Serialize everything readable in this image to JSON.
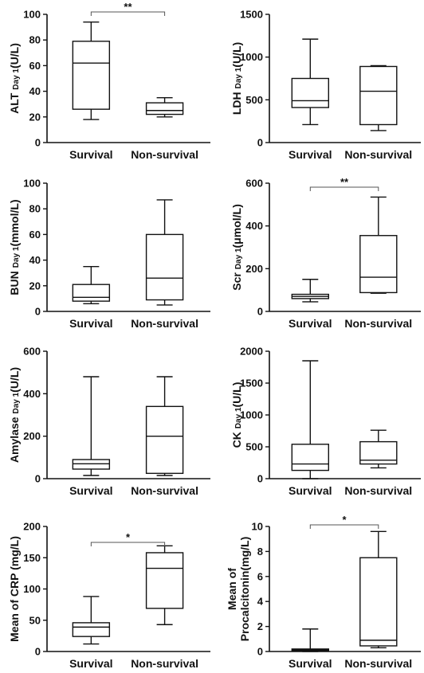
{
  "chart_data": [
    {
      "type": "box",
      "ylabel_main": "ALT",
      "ylabel_sub": "Day 1",
      "ylabel_unit": "(U/L)",
      "categories": [
        "Survival",
        "Non-survival"
      ],
      "ylim": [
        0,
        100
      ],
      "yticks": [
        0,
        20,
        40,
        60,
        80,
        100
      ],
      "boxes": [
        {
          "min": 18,
          "q1": 26,
          "median": 62,
          "q3": 79,
          "max": 94
        },
        {
          "min": 20,
          "q1": 22,
          "median": 25,
          "q3": 31,
          "max": 35
        }
      ],
      "significance": "**"
    },
    {
      "type": "box",
      "ylabel_main": "LDH",
      "ylabel_sub": "Day 1",
      "ylabel_unit": "(U/L)",
      "categories": [
        "Survival",
        "Non-survival"
      ],
      "ylim": [
        0,
        1500
      ],
      "yticks": [
        0,
        500,
        1000,
        1500
      ],
      "boxes": [
        {
          "min": 210,
          "q1": 410,
          "median": 490,
          "q3": 750,
          "max": 1210
        },
        {
          "min": 140,
          "q1": 210,
          "median": 600,
          "q3": 890,
          "max": 900
        }
      ],
      "significance": ""
    },
    {
      "type": "box",
      "ylabel_main": "BUN",
      "ylabel_sub": "Day 1",
      "ylabel_unit": "(mmol/L)",
      "categories": [
        "Survival",
        "Non-survival"
      ],
      "ylim": [
        0,
        100
      ],
      "yticks": [
        0,
        20,
        40,
        60,
        80,
        100
      ],
      "boxes": [
        {
          "min": 6,
          "q1": 8,
          "median": 11,
          "q3": 21,
          "max": 35
        },
        {
          "min": 5,
          "q1": 9,
          "median": 26,
          "q3": 60,
          "max": 87
        }
      ],
      "significance": ""
    },
    {
      "type": "box",
      "ylabel_main": "Scr",
      "ylabel_sub": "Day 1",
      "ylabel_unit": "(μmol/L)",
      "categories": [
        "Survival",
        "Non-survival"
      ],
      "ylim": [
        0,
        600
      ],
      "yticks": [
        0,
        200,
        400,
        600
      ],
      "boxes": [
        {
          "min": 45,
          "q1": 60,
          "median": 70,
          "q3": 80,
          "max": 150
        },
        {
          "min": 85,
          "q1": 88,
          "median": 160,
          "q3": 355,
          "max": 535
        }
      ],
      "significance": "**"
    },
    {
      "type": "box",
      "ylabel_main": "Amylase",
      "ylabel_sub": "Day 1",
      "ylabel_unit": "(U/L)",
      "categories": [
        "Survival",
        "Non-survival"
      ],
      "ylim": [
        0,
        600
      ],
      "yticks": [
        0,
        200,
        400,
        600
      ],
      "boxes": [
        {
          "min": 15,
          "q1": 45,
          "median": 70,
          "q3": 90,
          "max": 480
        },
        {
          "min": 15,
          "q1": 25,
          "median": 200,
          "q3": 340,
          "max": 480
        }
      ],
      "significance": ""
    },
    {
      "type": "box",
      "ylabel_main": "CK",
      "ylabel_sub": "Day 1",
      "ylabel_unit": "(U/L)",
      "categories": [
        "Survival",
        "Non-survival"
      ],
      "ylim": [
        0,
        2000
      ],
      "yticks": [
        0,
        500,
        1000,
        1500,
        2000
      ],
      "boxes": [
        {
          "min": 0,
          "q1": 130,
          "median": 230,
          "q3": 540,
          "max": 1850
        },
        {
          "min": 170,
          "q1": 230,
          "median": 290,
          "q3": 580,
          "max": 760
        }
      ],
      "significance": ""
    },
    {
      "type": "box",
      "ylabel_main": "Mean of CRP (mg/L)",
      "ylabel_sub": "",
      "ylabel_unit": "",
      "categories": [
        "Survival",
        "Non-survival"
      ],
      "ylim": [
        0,
        200
      ],
      "yticks": [
        0,
        50,
        100,
        150,
        200
      ],
      "boxes": [
        {
          "min": 12,
          "q1": 24,
          "median": 39,
          "q3": 46,
          "max": 88
        },
        {
          "min": 43,
          "q1": 69,
          "median": 133,
          "q3": 158,
          "max": 169
        }
      ],
      "significance": "*"
    },
    {
      "type": "box",
      "ylabel_main": "Mean of",
      "ylabel_sub": "",
      "ylabel_unit": "",
      "ylabel_line2": "Procalcitonin(mg/L)",
      "categories": [
        "Survival",
        "Non-survival"
      ],
      "ylim": [
        0,
        10
      ],
      "yticks": [
        0,
        2,
        4,
        6,
        8,
        10
      ],
      "boxes": [
        {
          "min": 0,
          "q1": 0.05,
          "median": 0.12,
          "q3": 0.2,
          "max": 1.8
        },
        {
          "min": 0.3,
          "q1": 0.45,
          "median": 0.9,
          "q3": 7.5,
          "max": 9.6
        }
      ],
      "significance": "*"
    }
  ]
}
